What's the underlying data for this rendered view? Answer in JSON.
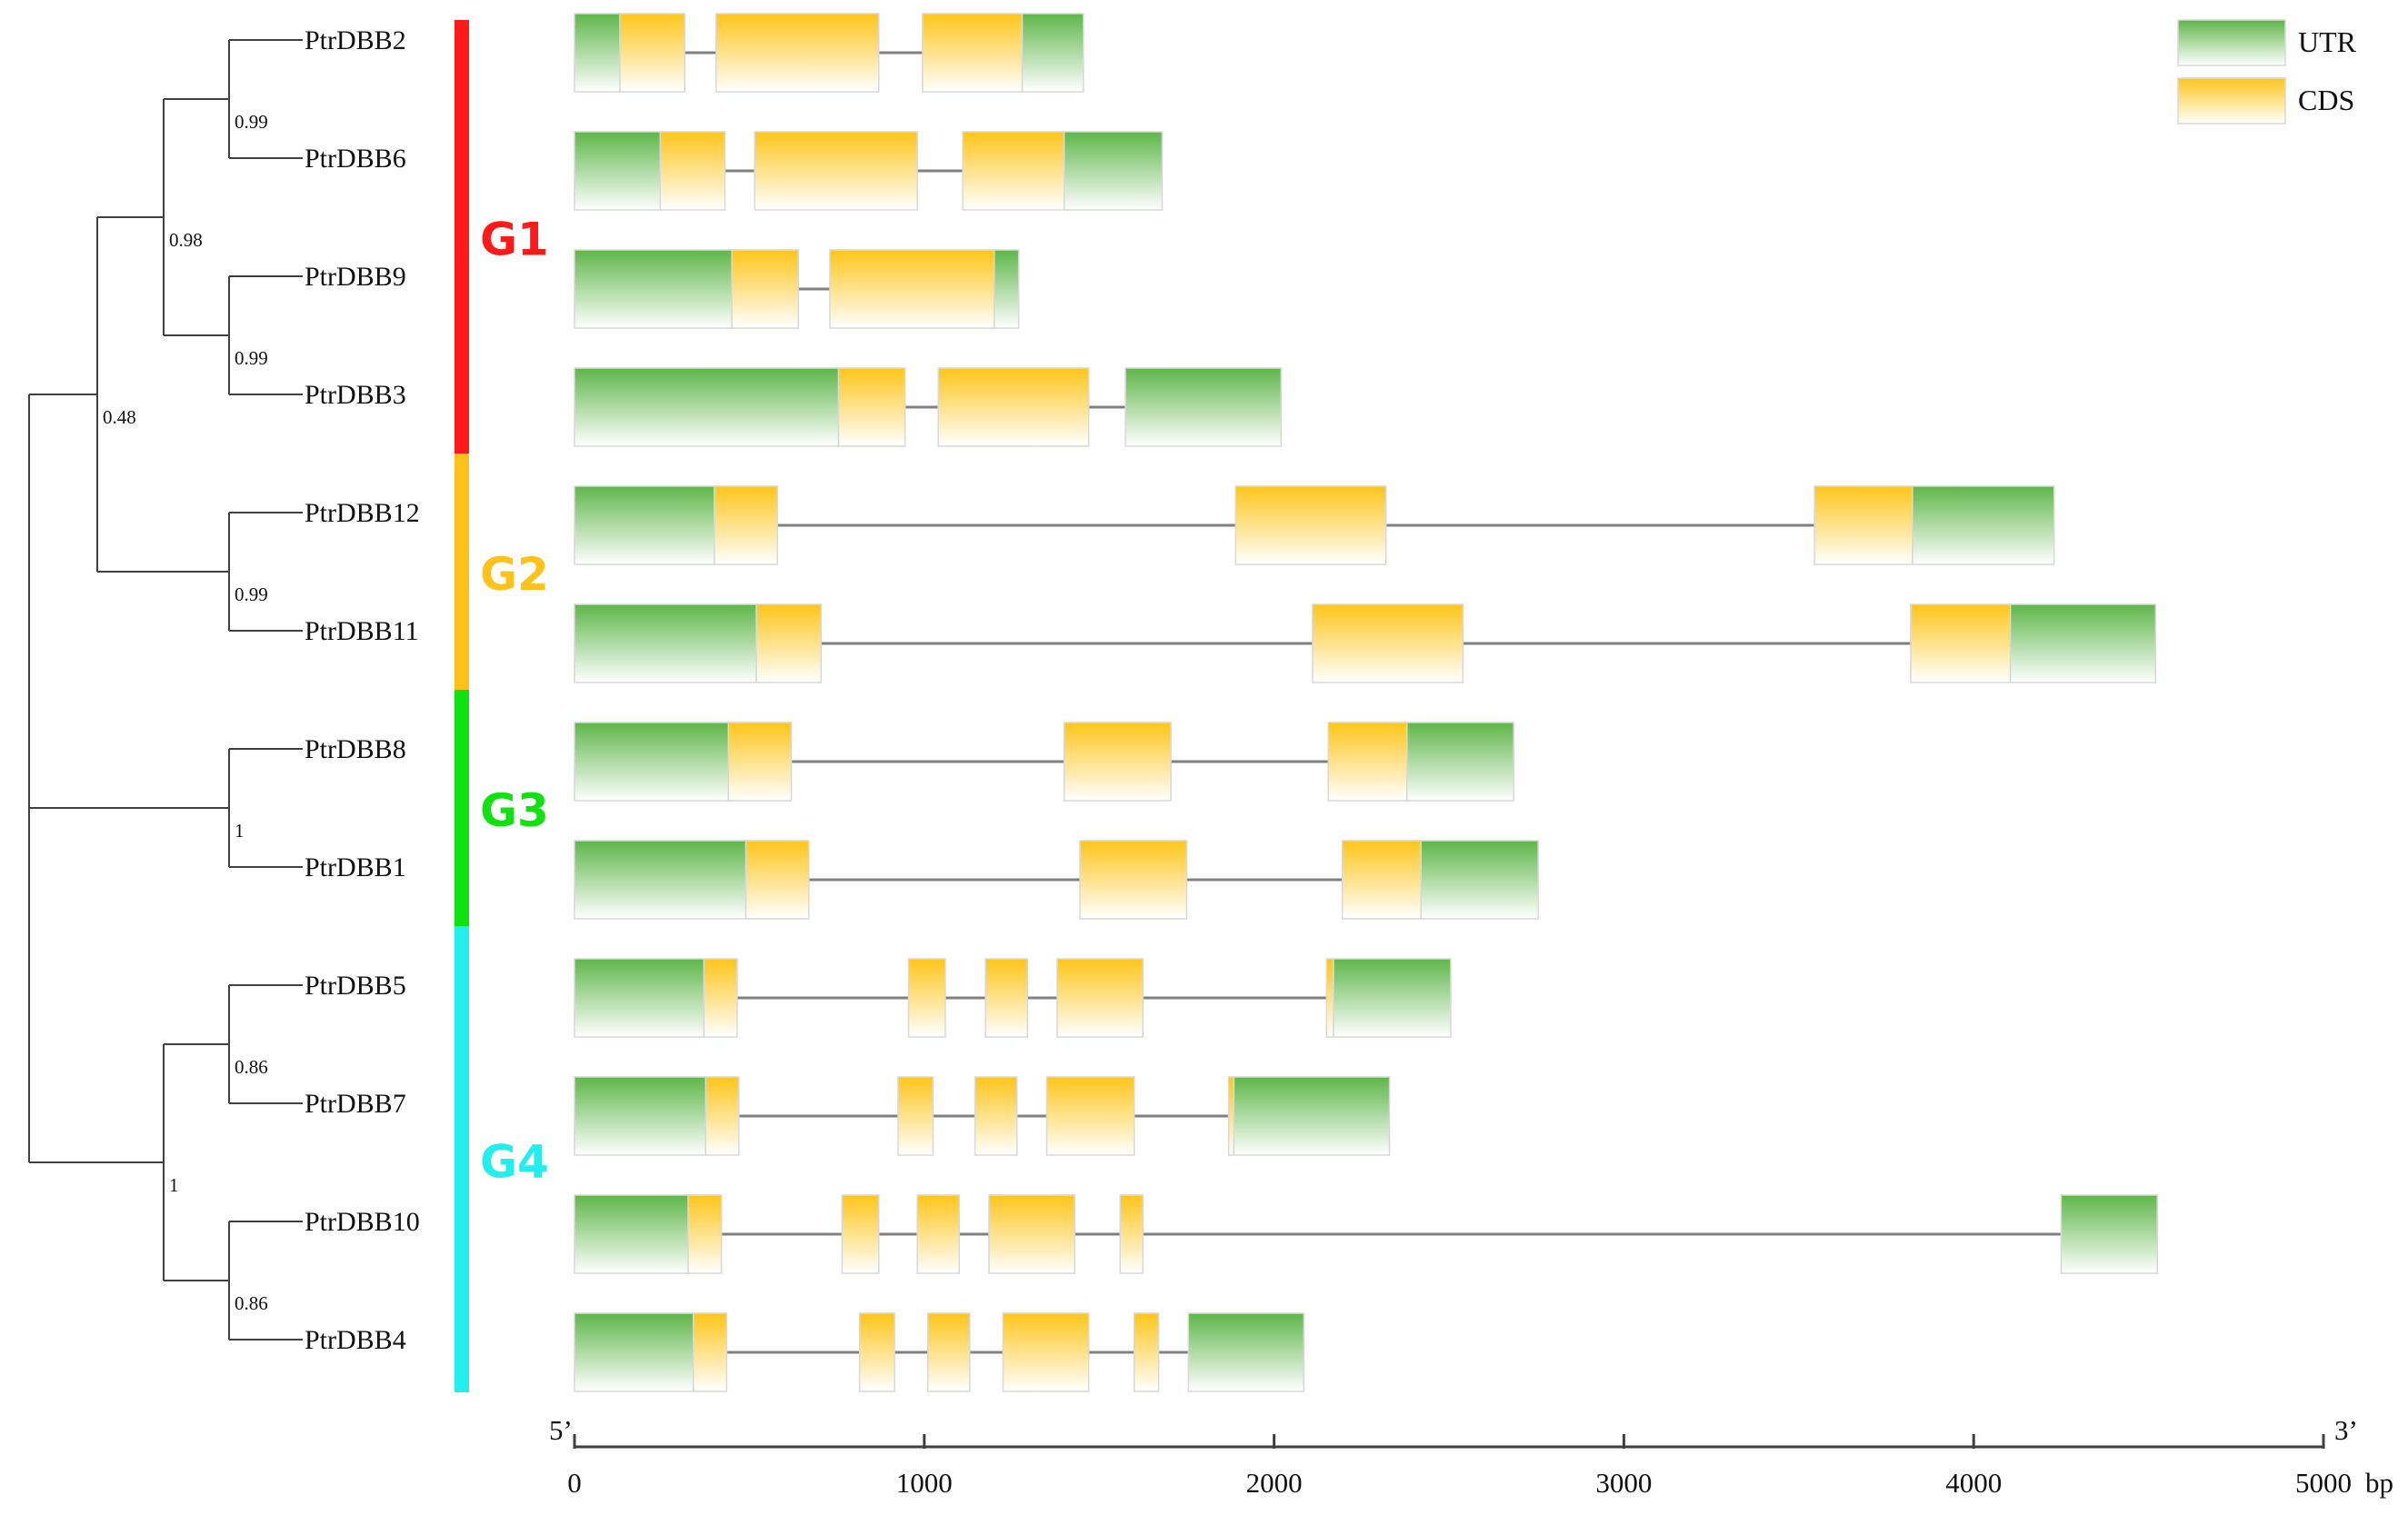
{
  "colors": {
    "utr_top": "#5fb64a",
    "utr_bottom": "#ffffff",
    "cds_top": "#ffc51a",
    "cds_bottom": "#ffffff",
    "line": "#808080",
    "tree": "#404040"
  },
  "legend": [
    {
      "key": "utr",
      "label": "UTR"
    },
    {
      "key": "cds",
      "label": "CDS"
    }
  ],
  "tree": {
    "leaves": [
      "PtrDBB2",
      "PtrDBB6",
      "PtrDBB9",
      "PtrDBB3",
      "PtrDBB12",
      "PtrDBB11",
      "PtrDBB8",
      "PtrDBB1",
      "PtrDBB5",
      "PtrDBB7",
      "PtrDBB10",
      "PtrDBB4"
    ],
    "support_values": [
      "0.99",
      "0.99",
      "0.98",
      "0.99",
      "0.48",
      "1",
      "0.86",
      "0.86",
      "1"
    ]
  },
  "groups": [
    {
      "name": "G1",
      "color": "#ff1a1a",
      "first": 0,
      "last": 3
    },
    {
      "name": "G2",
      "color": "#ffc21a",
      "first": 4,
      "last": 5
    },
    {
      "name": "G3",
      "color": "#11e011",
      "first": 6,
      "last": 7
    },
    {
      "name": "G4",
      "color": "#22eeee",
      "first": 8,
      "last": 11
    }
  ],
  "axis": {
    "ticks": [
      "0",
      "1000",
      "2000",
      "3000",
      "4000",
      "5000"
    ],
    "unit": "bp",
    "left_label": "5’",
    "right_label": "3’",
    "max": 5000
  },
  "genes": [
    {
      "name": "PtrDBB2",
      "segments": [
        [
          "utr",
          0,
          130
        ],
        [
          "cds",
          130,
          315
        ],
        [
          "cds",
          405,
          870
        ],
        [
          "cds",
          995,
          1280
        ],
        [
          "utr",
          1280,
          1455
        ]
      ]
    },
    {
      "name": "PtrDBB6",
      "segments": [
        [
          "utr",
          0,
          245
        ],
        [
          "cds",
          245,
          430
        ],
        [
          "cds",
          515,
          980
        ],
        [
          "cds",
          1110,
          1400
        ],
        [
          "utr",
          1400,
          1680
        ]
      ]
    },
    {
      "name": "PtrDBB9",
      "segments": [
        [
          "utr",
          0,
          450
        ],
        [
          "cds",
          450,
          640
        ],
        [
          "cds",
          730,
          1200
        ],
        [
          "utr",
          1200,
          1270
        ]
      ]
    },
    {
      "name": "PtrDBB3",
      "segments": [
        [
          "utr",
          0,
          755
        ],
        [
          "cds",
          755,
          945
        ],
        [
          "cds",
          1040,
          1470
        ],
        [
          "utr",
          1575,
          2020
        ]
      ]
    },
    {
      "name": "PtrDBB12",
      "segments": [
        [
          "utr",
          0,
          400
        ],
        [
          "cds",
          400,
          580
        ],
        [
          "cds",
          1890,
          2320
        ],
        [
          "cds",
          3545,
          3825
        ],
        [
          "utr",
          3825,
          4230
        ]
      ]
    },
    {
      "name": "PtrDBB11",
      "segments": [
        [
          "utr",
          0,
          520
        ],
        [
          "cds",
          520,
          705
        ],
        [
          "cds",
          2110,
          2540
        ],
        [
          "cds",
          3820,
          4105
        ],
        [
          "utr",
          4105,
          4520
        ]
      ]
    },
    {
      "name": "PtrDBB8",
      "segments": [
        [
          "utr",
          0,
          440
        ],
        [
          "cds",
          440,
          620
        ],
        [
          "cds",
          1400,
          1705
        ],
        [
          "cds",
          2155,
          2380
        ],
        [
          "utr",
          2380,
          2685
        ]
      ]
    },
    {
      "name": "PtrDBB1",
      "segments": [
        [
          "utr",
          0,
          490
        ],
        [
          "cds",
          490,
          670
        ],
        [
          "cds",
          1445,
          1750
        ],
        [
          "cds",
          2195,
          2420
        ],
        [
          "utr",
          2420,
          2755
        ]
      ]
    },
    {
      "name": "PtrDBB5",
      "segments": [
        [
          "utr",
          0,
          370
        ],
        [
          "cds",
          370,
          465
        ],
        [
          "cds",
          955,
          1060
        ],
        [
          "cds",
          1175,
          1295
        ],
        [
          "cds",
          1380,
          1625
        ],
        [
          "cds",
          2150,
          2170
        ],
        [
          "utr",
          2170,
          2505
        ]
      ]
    },
    {
      "name": "PtrDBB7",
      "segments": [
        [
          "utr",
          0,
          375
        ],
        [
          "cds",
          375,
          470
        ],
        [
          "cds",
          925,
          1025
        ],
        [
          "cds",
          1145,
          1265
        ],
        [
          "cds",
          1350,
          1600
        ],
        [
          "cds",
          1870,
          1885
        ],
        [
          "utr",
          1885,
          2330
        ]
      ]
    },
    {
      "name": "PtrDBB10",
      "segments": [
        [
          "utr",
          0,
          325
        ],
        [
          "cds",
          325,
          420
        ],
        [
          "cds",
          765,
          870
        ],
        [
          "cds",
          980,
          1100
        ],
        [
          "cds",
          1185,
          1430
        ],
        [
          "cds",
          1560,
          1625
        ],
        [
          "utr",
          4250,
          4525
        ]
      ]
    },
    {
      "name": "PtrDBB4",
      "segments": [
        [
          "utr",
          0,
          340
        ],
        [
          "cds",
          340,
          435
        ],
        [
          "cds",
          815,
          915
        ],
        [
          "cds",
          1010,
          1130
        ],
        [
          "cds",
          1225,
          1470
        ],
        [
          "cds",
          1600,
          1670
        ],
        [
          "utr",
          1755,
          2085
        ]
      ]
    }
  ]
}
